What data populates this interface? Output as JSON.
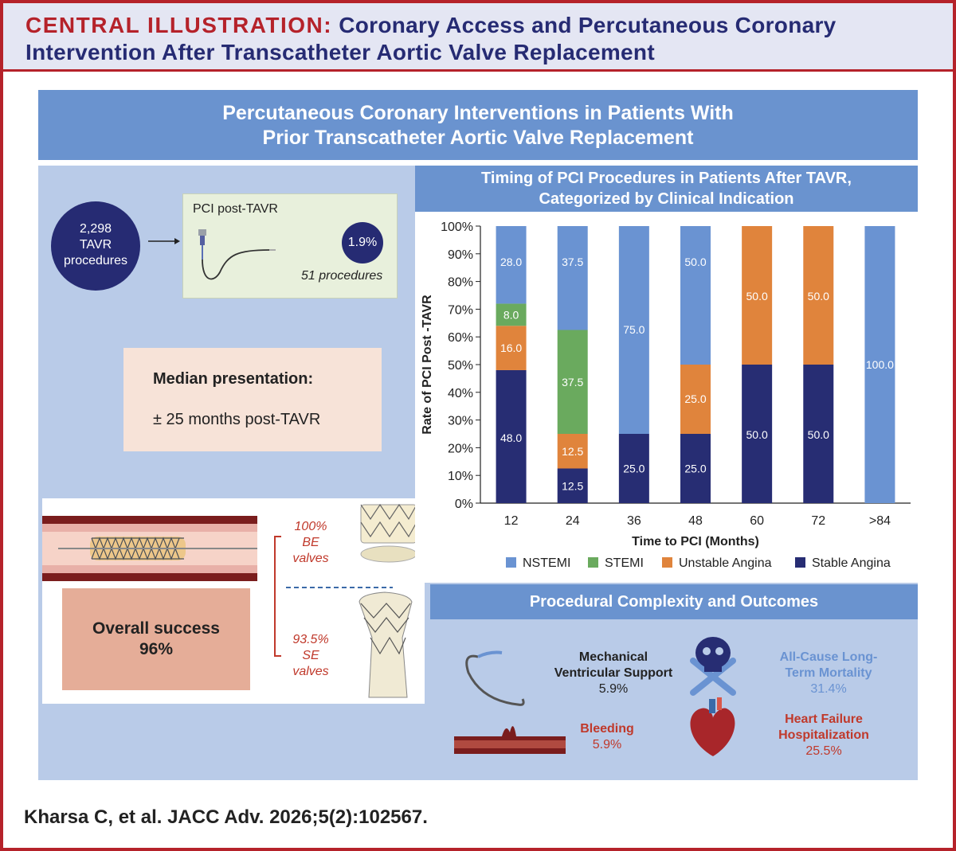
{
  "header": {
    "tag": "CENTRAL ILLUSTRATION:",
    "title_line1": "Coronary Access and Percutaneous Coronary",
    "title_line2": "Intervention After Transcatheter Aortic Valve Replacement"
  },
  "banner": {
    "line1": "Percutaneous Coronary Interventions in Patients With",
    "line2": "Prior Transcatheter Aortic Valve Replacement"
  },
  "summary": {
    "tavr_count": "2,298",
    "tavr_label1": "TAVR",
    "tavr_label2": "procedures",
    "pci_title": "PCI post-TAVR",
    "pci_rate": "1.9%",
    "pci_procedures": "51 procedures",
    "median_title": "Median presentation:",
    "median_value": "± 25 months post-TAVR"
  },
  "valves": {
    "be_pct": "100%",
    "be_line1": "BE",
    "be_line2": "valves",
    "se_pct": "93.5%",
    "se_line1": "SE",
    "se_line2": "valves",
    "success_label": "Overall success",
    "success_value": "96%"
  },
  "chart_title": {
    "line1": "Timing of PCI Procedures in Patients After TAVR,",
    "line2": "Categorized  by Clinical Indication"
  },
  "chart_data": {
    "type": "bar",
    "stacked": true,
    "title": "Timing of PCI Procedures in Patients After TAVR, Categorized  by Clinical Indication",
    "xlabel": "Time to PCI (Months)",
    "ylabel": "Rate of PCI Post -TAVR",
    "ylim": [
      0,
      100
    ],
    "yticks": [
      "0%",
      "10%",
      "20%",
      "30%",
      "40%",
      "50%",
      "60%",
      "70%",
      "80%",
      "90%",
      "100%"
    ],
    "categories": [
      "12",
      "24",
      "36",
      "48",
      "60",
      "72",
      ">84"
    ],
    "legend_position": "bottom",
    "series": [
      {
        "name": "Stable Angina",
        "color": "#272d73",
        "label_color": "#ffffff",
        "values": [
          48.0,
          12.5,
          25.0,
          25.0,
          50.0,
          50.0,
          0
        ],
        "labels": [
          "48.0",
          "12.5",
          "25.0",
          "25.0",
          "50.0",
          "50.0",
          ""
        ]
      },
      {
        "name": "Unstable Angina",
        "color": "#e0843c",
        "label_color": "#ffffff",
        "values": [
          16.0,
          12.5,
          0,
          25.0,
          50.0,
          50.0,
          0
        ],
        "labels": [
          "16.0",
          "12.5",
          "",
          "25.0",
          "50.0",
          "50.0",
          ""
        ]
      },
      {
        "name": "STEMI",
        "color": "#6aaa5e",
        "label_color": "#ffffff",
        "values": [
          8.0,
          37.5,
          0,
          0,
          0,
          0,
          0
        ],
        "labels": [
          "8.0",
          "37.5",
          "",
          "",
          "",
          "",
          ""
        ]
      },
      {
        "name": "NSTEMI",
        "color": "#6a93d2",
        "label_color": "#ffffff",
        "values": [
          28.0,
          37.5,
          75.0,
          50.0,
          0,
          0,
          100.0
        ],
        "labels": [
          "28.0",
          "37.5",
          "75.0",
          "50.0",
          "",
          "",
          "100.0"
        ]
      }
    ],
    "legend_order": [
      "NSTEMI",
      "STEMI",
      "Unstable Angina",
      "Stable Angina"
    ]
  },
  "outcomes": {
    "title": "Procedural Complexity and Outcomes",
    "mcs_line1": "Mechanical",
    "mcs_line2": "Ventricular Support",
    "mcs_value": "5.9%",
    "mort_line1": "All-Cause Long-",
    "mort_line2": "Term Mortality",
    "mort_value": "31.4%",
    "bleed_label": "Bleeding",
    "bleed_value": "5.9%",
    "hf_line1": "Heart Failure",
    "hf_line2": "Hospitalization",
    "hf_value": "25.5%"
  },
  "colors": {
    "brand_red": "#b5222a",
    "navy": "#262b73",
    "banner_blue": "#6a93cf",
    "panel_blue": "#b9cbe8",
    "mortality_text": "#6a93d2",
    "red_text": "#c0392b"
  },
  "citation": "Kharsa C, et al. JACC Adv. 2026;5(2):102567."
}
